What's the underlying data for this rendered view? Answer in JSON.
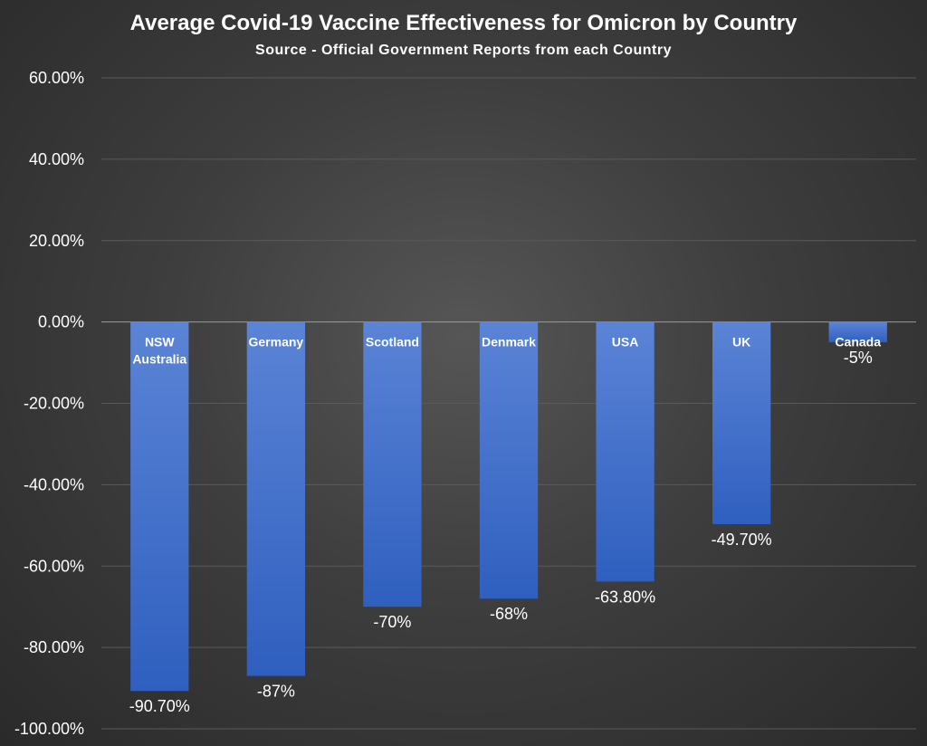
{
  "chart_data": {
    "type": "bar",
    "title": "Average Covid-19 Vaccine Effectiveness for Omicron by Country",
    "subtitle": "Source - Official Government Reports from each Country",
    "categories": [
      [
        "NSW",
        "Australia"
      ],
      [
        "Germany"
      ],
      [
        "Scotland"
      ],
      [
        "Denmark"
      ],
      [
        "USA"
      ],
      [
        "UK"
      ],
      [
        "Canada"
      ]
    ],
    "values": [
      -90.7,
      -87,
      -70,
      -68,
      -63.8,
      -49.7,
      -5
    ],
    "value_labels": [
      "-90.70%",
      "-87%",
      "-70%",
      "-68%",
      "-63.80%",
      "-49.70%",
      "-5%"
    ],
    "ylim": [
      -100,
      60
    ],
    "yticks": [
      60,
      40,
      20,
      0,
      -20,
      -40,
      -60,
      -80,
      -100
    ],
    "ytick_labels": [
      "60.00%",
      "40.00%",
      "20.00%",
      "0.00%",
      "-20.00%",
      "-40.00%",
      "-60.00%",
      "-80.00%",
      "-100.00%"
    ],
    "grid": true,
    "legend": "none",
    "colors": {
      "bar_top": "#5b84d6",
      "bar_bottom": "#2f5fbf",
      "text": "#ffffff",
      "background": "#3e3e3e"
    }
  }
}
